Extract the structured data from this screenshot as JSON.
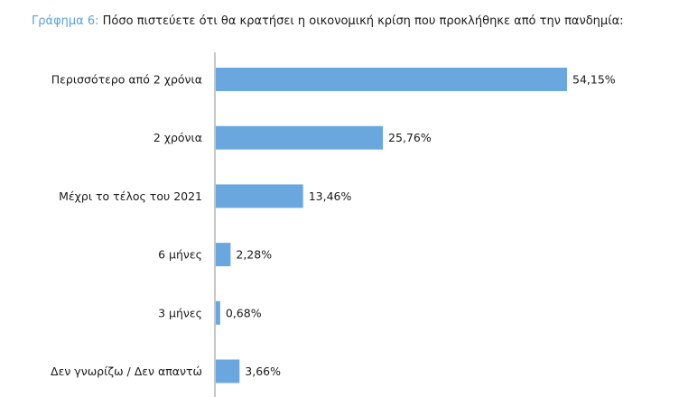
{
  "title": {
    "prefix": "Γράφημα 6:",
    "text": "Πόσο πιστεύετε ότι θα κρατήσει η οικονομική κρίση που προκλήθηκε από την πανδημία:"
  },
  "colors": {
    "bar": "#6aa7de",
    "axis": "#8c8c8c",
    "title_prefix": "#5aa2dc"
  },
  "chart_data": {
    "type": "bar",
    "orientation": "horizontal",
    "categories": [
      "Περισσότερο από 2 χρόνια",
      "2 χρόνια",
      "Μέχρι το τέλος του 2021",
      "6 μήνες",
      "3 μήνες",
      "Δεν γνωρίζω / Δεν απαντώ"
    ],
    "values": [
      54.15,
      25.76,
      13.46,
      2.28,
      0.68,
      3.66
    ],
    "value_labels": [
      "54,15%",
      "25,76%",
      "13,46%",
      "2,28%",
      "0,68%",
      "3,66%"
    ],
    "xlim": [
      0,
      60
    ],
    "grid": false,
    "legend": "none"
  }
}
